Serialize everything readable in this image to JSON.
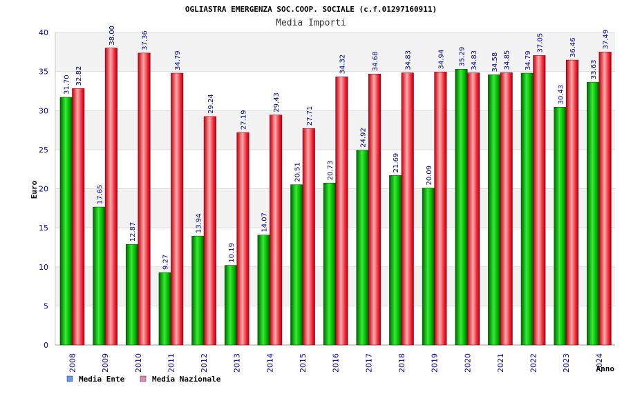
{
  "chart_data": {
    "type": "bar",
    "title": "OGLIASTRA EMERGENZA SOC.COOP. SOCIALE (c.f.01297160911)",
    "subtitle": "Media Importi",
    "xlabel": "Anno",
    "ylabel": "Euro",
    "ylim": [
      0,
      40
    ],
    "yticks": [
      "0",
      "5",
      "10",
      "15",
      "20",
      "25",
      "30",
      "35",
      "40"
    ],
    "grid": true,
    "legend_position": "bottom-left",
    "categories": [
      "2008",
      "2009",
      "2010",
      "2011",
      "2012",
      "2013",
      "2014",
      "2015",
      "2016",
      "2017",
      "2018",
      "2019",
      "2020",
      "2021",
      "2022",
      "2023",
      "2024"
    ],
    "series": [
      {
        "name": "Media Ente",
        "legend_color": "#6699ee",
        "bar_color": "#00cc00",
        "values": [
          31.7,
          17.65,
          12.87,
          9.27,
          13.94,
          10.19,
          14.07,
          20.51,
          20.73,
          24.92,
          21.69,
          20.09,
          35.29,
          34.58,
          34.79,
          30.43,
          33.63
        ],
        "labels": [
          "31.70",
          "17.65",
          "12.87",
          "9.27",
          "13.94",
          "10.19",
          "14.07",
          "20.51",
          "20.73",
          "24.92",
          "21.69",
          "20.09",
          "35.29",
          "34.58",
          "34.79",
          "30.43",
          "33.63"
        ]
      },
      {
        "name": "Media Nazionale",
        "legend_color": "#dd88bb",
        "bar_color": "#ee2233",
        "values": [
          32.82,
          38.0,
          37.36,
          34.79,
          29.24,
          27.19,
          29.43,
          27.71,
          34.32,
          34.68,
          34.83,
          34.94,
          34.83,
          34.85,
          37.05,
          36.46,
          37.49
        ],
        "labels": [
          "32.82",
          "38.00",
          "37.36",
          "34.79",
          "29.24",
          "27.19",
          "29.43",
          "27.71",
          "34.32",
          "34.68",
          "34.83",
          "34.94",
          "34.83",
          "34.85",
          "37.05",
          "36.46",
          "37.49"
        ]
      }
    ]
  }
}
